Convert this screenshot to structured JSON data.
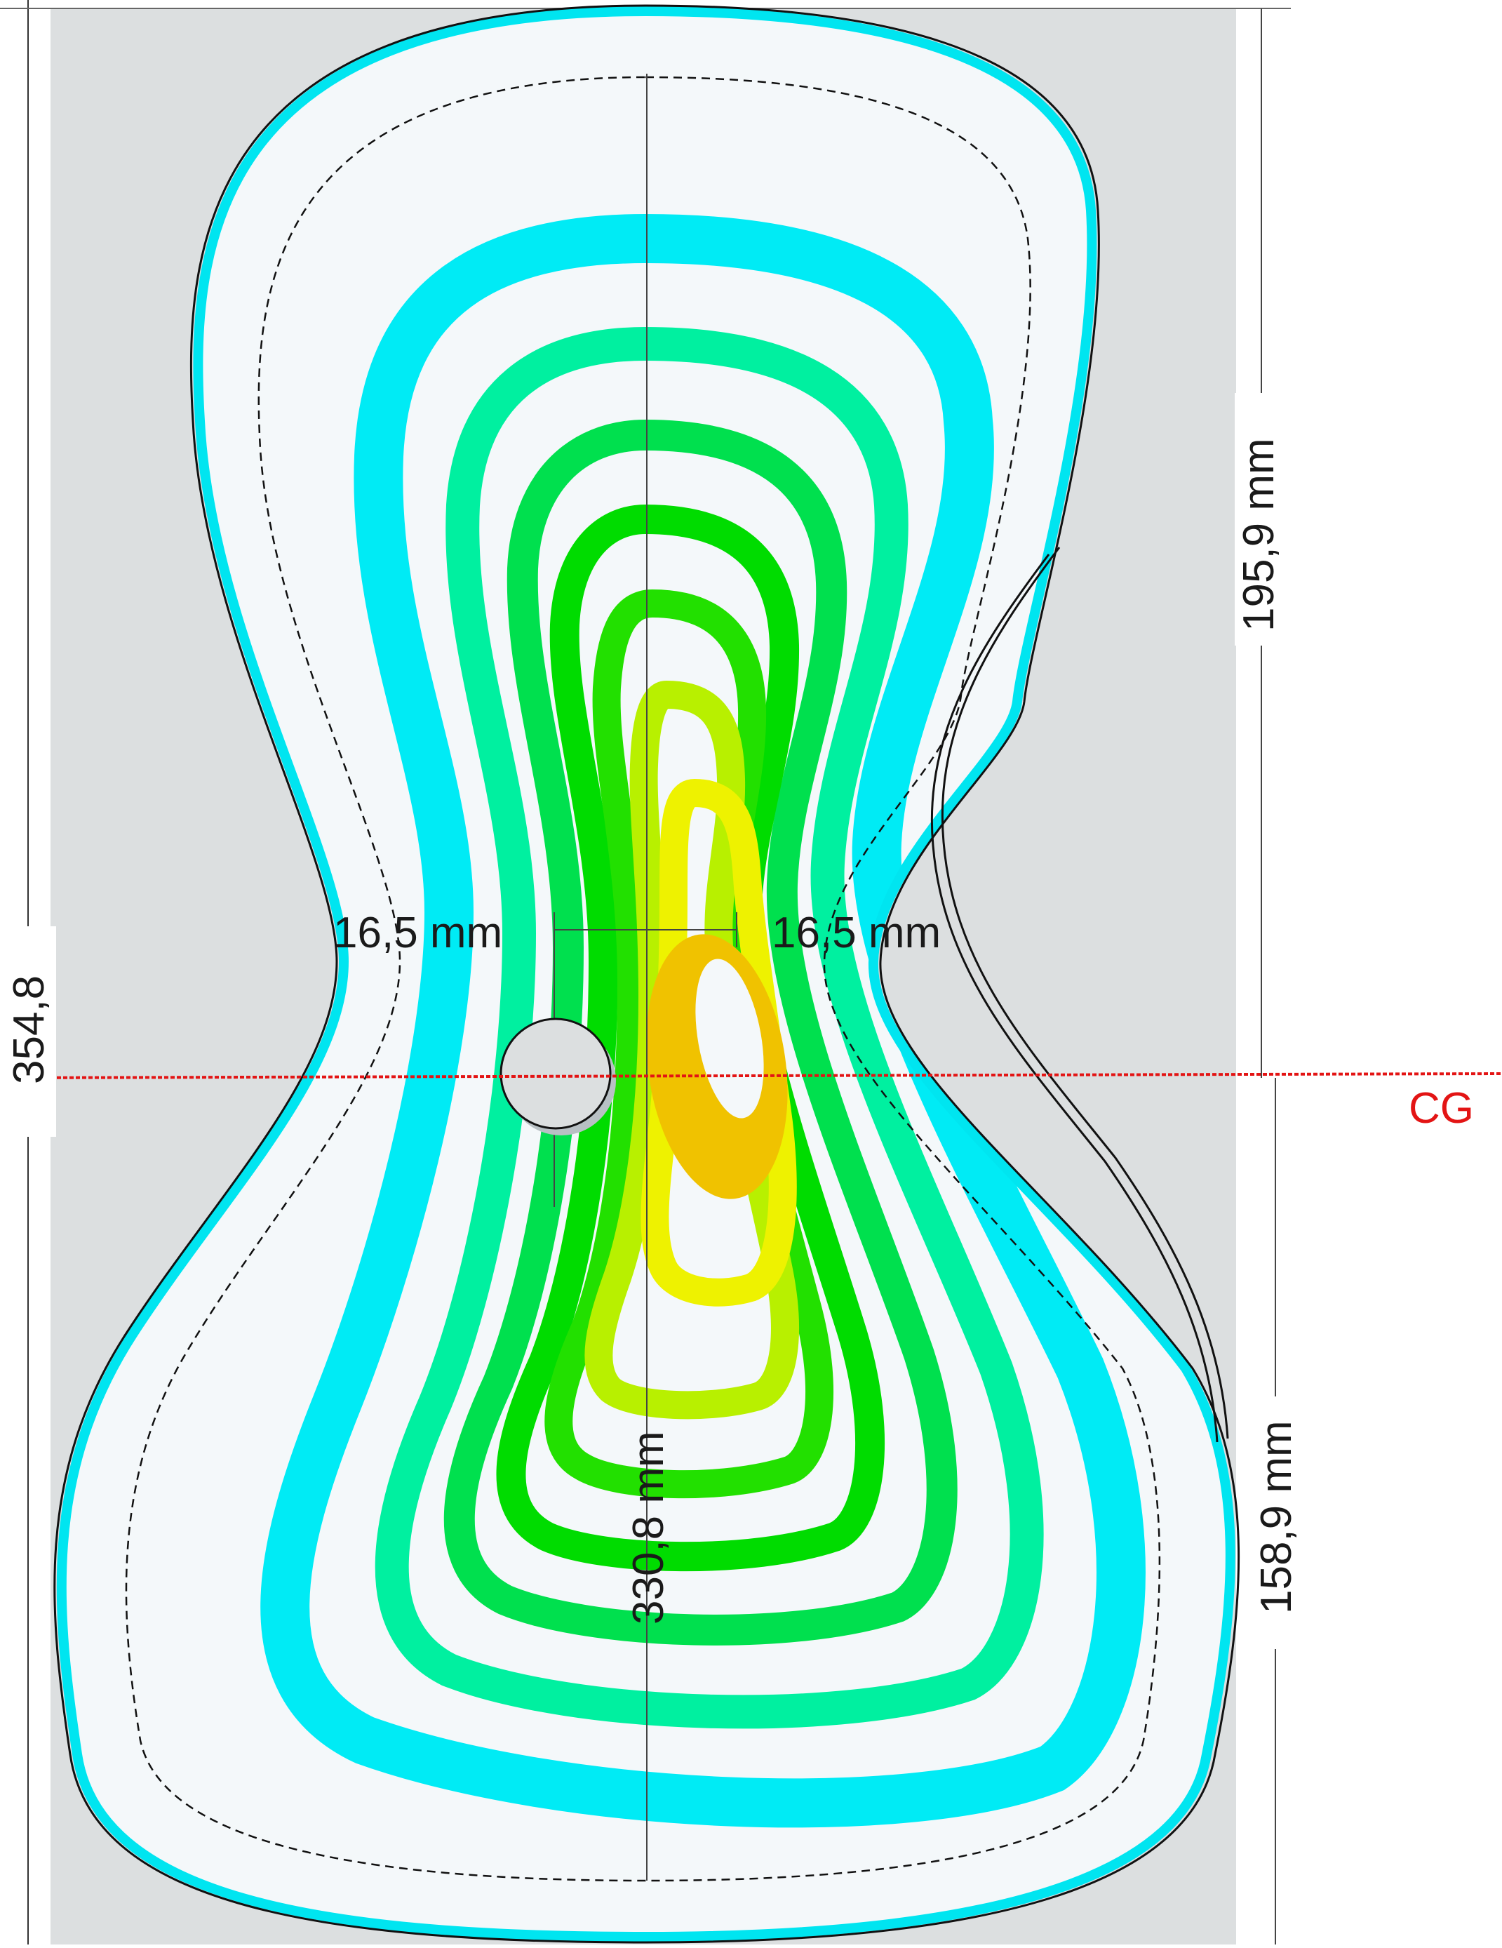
{
  "labels": {
    "total_height": "354,8",
    "upper_height": "195,9 mm",
    "lower_height": "158,9 mm",
    "inner_height": "330,8 mm",
    "offset_left": "16,5 mm",
    "offset_right": "16,5 mm",
    "cg": "CG"
  },
  "colors": {
    "background_panel": "#dcdfe0",
    "plate_fill": "#f4f8fa",
    "outline_stroke": "#111111",
    "edge_band": "#00e5f0",
    "cg_line": "#e31414",
    "contour_bands": [
      "#00ebf5",
      "#00f0a0",
      "#00e04e",
      "#00dc00",
      "#22e000",
      "#b8f000",
      "#eef200",
      "#f0c200",
      "#f5b000"
    ]
  }
}
